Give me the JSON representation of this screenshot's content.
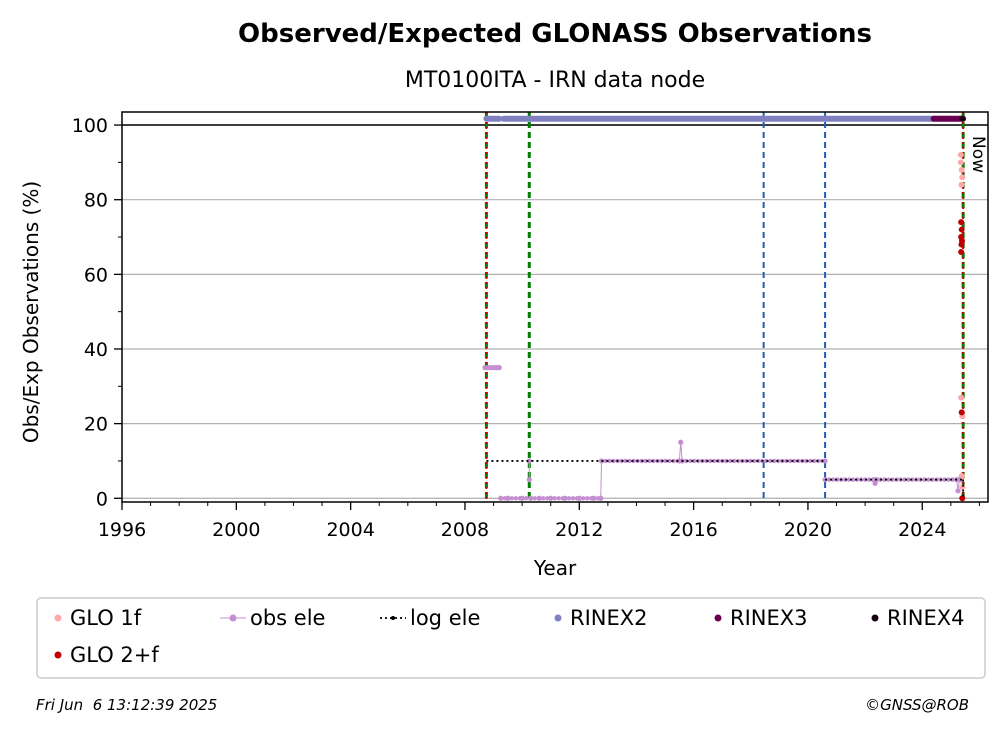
{
  "chart_data": {
    "type": "scatter",
    "title": "Observed/Expected GLONASS Observations",
    "subtitle": "MT0100ITA - IRN data node",
    "xlabel": "Year",
    "ylabel": "Obs/Exp Observations (%)",
    "xlim": [
      1996,
      2026.3
    ],
    "ylim": [
      -1,
      103.5
    ],
    "x_ticks": [
      "1996",
      "2000",
      "2004",
      "2008",
      "2012",
      "2016",
      "2020",
      "2024"
    ],
    "y_ticks": [
      "0",
      "20",
      "40",
      "60",
      "80",
      "100"
    ],
    "grid": "horizontal",
    "reference_line_y": 100,
    "now_label": "Now",
    "now_x": 2025.43,
    "vertical_lines": [
      {
        "x": 2008.75,
        "color": "#008000",
        "style": "dashed"
      },
      {
        "x": 2008.75,
        "color": "#cc0000",
        "style": "dotted"
      },
      {
        "x": 2010.25,
        "color": "#008000",
        "style": "dashed"
      },
      {
        "x": 2018.45,
        "color": "#1f5fb0",
        "style": "dashed"
      },
      {
        "x": 2020.6,
        "color": "#1f5fb0",
        "style": "dashed"
      },
      {
        "x": 2025.43,
        "color": "#008000",
        "style": "dashed"
      },
      {
        "x": 2025.43,
        "color": "#cc0000",
        "style": "dotted"
      }
    ],
    "series": [
      {
        "name": "GLO 1f",
        "color": "#ffa8a8",
        "marker": "dot",
        "points": [
          [
            2025.35,
            92
          ],
          [
            2025.35,
            90
          ],
          [
            2025.38,
            88
          ],
          [
            2025.4,
            86
          ],
          [
            2025.37,
            84
          ],
          [
            2025.36,
            27
          ],
          [
            2025.4,
            22
          ],
          [
            2025.38,
            6
          ],
          [
            2025.36,
            5
          ],
          [
            2025.4,
            3
          ]
        ]
      },
      {
        "name": "GLO 2+f",
        "color": "#c00000",
        "marker": "dot",
        "points": [
          [
            2025.36,
            74
          ],
          [
            2025.38,
            72
          ],
          [
            2025.36,
            70
          ],
          [
            2025.39,
            69
          ],
          [
            2025.37,
            68
          ],
          [
            2025.36,
            66
          ],
          [
            2025.38,
            23
          ],
          [
            2025.4,
            0
          ]
        ]
      },
      {
        "name": "obs ele",
        "color": "#c48fd0",
        "marker": "dot-line",
        "segments": [
          [
            [
              2008.7,
              35
            ],
            [
              2008.8,
              35
            ],
            [
              2008.9,
              35
            ],
            [
              2009.0,
              35
            ],
            [
              2009.1,
              35
            ],
            [
              2009.15,
              35
            ],
            [
              2009.2,
              35
            ]
          ],
          [
            [
              2009.25,
              0
            ],
            [
              2009.5,
              0
            ],
            [
              2010.0,
              0
            ],
            [
              2010.3,
              0
            ],
            [
              2010.6,
              0
            ],
            [
              2011.0,
              0
            ],
            [
              2011.5,
              0
            ],
            [
              2012.0,
              0
            ],
            [
              2012.5,
              0
            ],
            [
              2012.75,
              0
            ]
          ],
          [
            [
              2010.25,
              5
            ],
            [
              2010.25,
              10
            ]
          ],
          [
            [
              2012.75,
              0
            ],
            [
              2012.78,
              10
            ],
            [
              2015.5,
              10
            ],
            [
              2015.55,
              15
            ],
            [
              2015.6,
              10
            ],
            [
              2020.6,
              10
            ]
          ],
          [
            [
              2020.6,
              5
            ],
            [
              2022.3,
              5
            ],
            [
              2022.35,
              4
            ],
            [
              2022.4,
              5
            ],
            [
              2025.2,
              5
            ],
            [
              2025.25,
              2
            ],
            [
              2025.3,
              5
            ]
          ]
        ]
      },
      {
        "name": "log ele",
        "color": "#000000",
        "marker": "dotted-line",
        "segments": [
          [
            [
              2008.75,
              10
            ],
            [
              2020.6,
              10
            ]
          ],
          [
            [
              2020.6,
              5
            ],
            [
              2025.43,
              5
            ]
          ],
          [
            [
              2025.43,
              5
            ],
            [
              2025.43,
              0
            ]
          ]
        ]
      },
      {
        "name": "RINEX2",
        "color": "#8080c0",
        "marker": "dot-band",
        "ranges": [
          [
            2008.75,
            2009.2,
            101.7
          ],
          [
            2009.35,
            2024.4,
            101.7
          ]
        ]
      },
      {
        "name": "RINEX3",
        "color": "#6b0050",
        "marker": "dot-band",
        "ranges": [
          [
            2024.4,
            2025.43,
            101.7
          ]
        ]
      },
      {
        "name": "RINEX4",
        "color": "#1a0010",
        "marker": "dot",
        "points": [
          [
            2025.4,
            101.7
          ]
        ]
      }
    ],
    "legend": {
      "placement": "bottom",
      "entries": [
        {
          "label": "GLO 1f",
          "color": "#ffa8a8",
          "kind": "dot"
        },
        {
          "label": "obs ele",
          "color": "#c48fd0",
          "kind": "dot-line"
        },
        {
          "label": "log ele",
          "color": "#000000",
          "kind": "dotted-line"
        },
        {
          "label": "RINEX2",
          "color": "#8080c0",
          "kind": "dot"
        },
        {
          "label": "RINEX3",
          "color": "#6b0050",
          "kind": "dot"
        },
        {
          "label": "RINEX4",
          "color": "#1a0010",
          "kind": "dot"
        },
        {
          "label": "GLO 2+f",
          "color": "#c00000",
          "kind": "dot"
        }
      ]
    }
  },
  "footer": {
    "timestamp": "Fri Jun  6 13:12:39 2025",
    "credit": "©GNSS@ROB"
  }
}
